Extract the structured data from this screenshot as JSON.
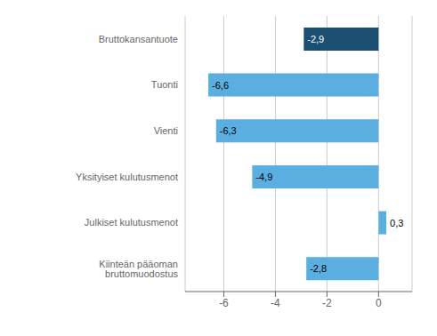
{
  "chart_data": {
    "type": "bar",
    "orientation": "horizontal",
    "categories": [
      "Kiinteän pääoman bruttomuodostus",
      "Julkiset kulutusmenot",
      "Yksityiset kulutusmenot",
      "Vienti",
      "Tuonti",
      "Bruttokansantuote"
    ],
    "values": [
      -2.8,
      0.3,
      -4.9,
      -6.3,
      -6.6,
      -2.9
    ],
    "value_labels": [
      "-2,8",
      "0,3",
      "-4,9",
      "-6,3",
      "-6,6",
      "-2,9"
    ],
    "colors": [
      "#5baee0",
      "#5baee0",
      "#5baee0",
      "#5baee0",
      "#5baee0",
      "#1b4f72"
    ],
    "xlim": [
      -7.5,
      1.3
    ],
    "xticks": [
      -6,
      -4,
      -2,
      0
    ],
    "grid": true,
    "data_labels": true
  }
}
